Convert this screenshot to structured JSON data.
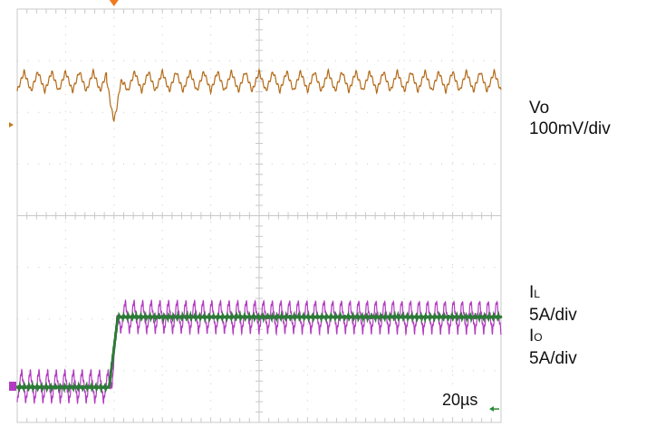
{
  "chart_data": {
    "type": "line",
    "grid": true,
    "divisions": {
      "x": 10,
      "y": 8
    },
    "timebase": "20µs",
    "trigger_position_div": 2.0,
    "load_step_time_div": 2.0,
    "series": [
      {
        "key": "vo",
        "color": "#b36b18",
        "baseline_div": 6.6,
        "ripple_pp_div": 0.38,
        "ripple_periods": 35,
        "dip_div": 0.55,
        "dip_time_div": 1.95
      },
      {
        "key": "il",
        "color": "#b23cc0",
        "low_div": 0.7,
        "high_div": 2.05,
        "ripple_pp_div": 0.62,
        "ripple_periods": 56,
        "rise_start_div": 1.92,
        "rise_end_div": 2.1
      },
      {
        "key": "io",
        "color": "#2d7a38",
        "low_div": 0.68,
        "high_div": 2.04,
        "rise_start_div": 1.9,
        "rise_end_div": 2.08
      }
    ]
  },
  "channels": {
    "vo": {
      "name": "Vo",
      "scale": "100mV/div"
    },
    "il": {
      "name": "I",
      "sub": "L",
      "scale": "5A/div"
    },
    "io": {
      "name": "I",
      "sub": "O",
      "scale": "5A/div"
    }
  },
  "colors": {
    "grid": "#c8c8c8",
    "trigger": "#f07a1e",
    "ch1_marker": "#c77a1e",
    "ch2_marker": "#b23cc0",
    "ch3_marker": "#2d8a38"
  }
}
